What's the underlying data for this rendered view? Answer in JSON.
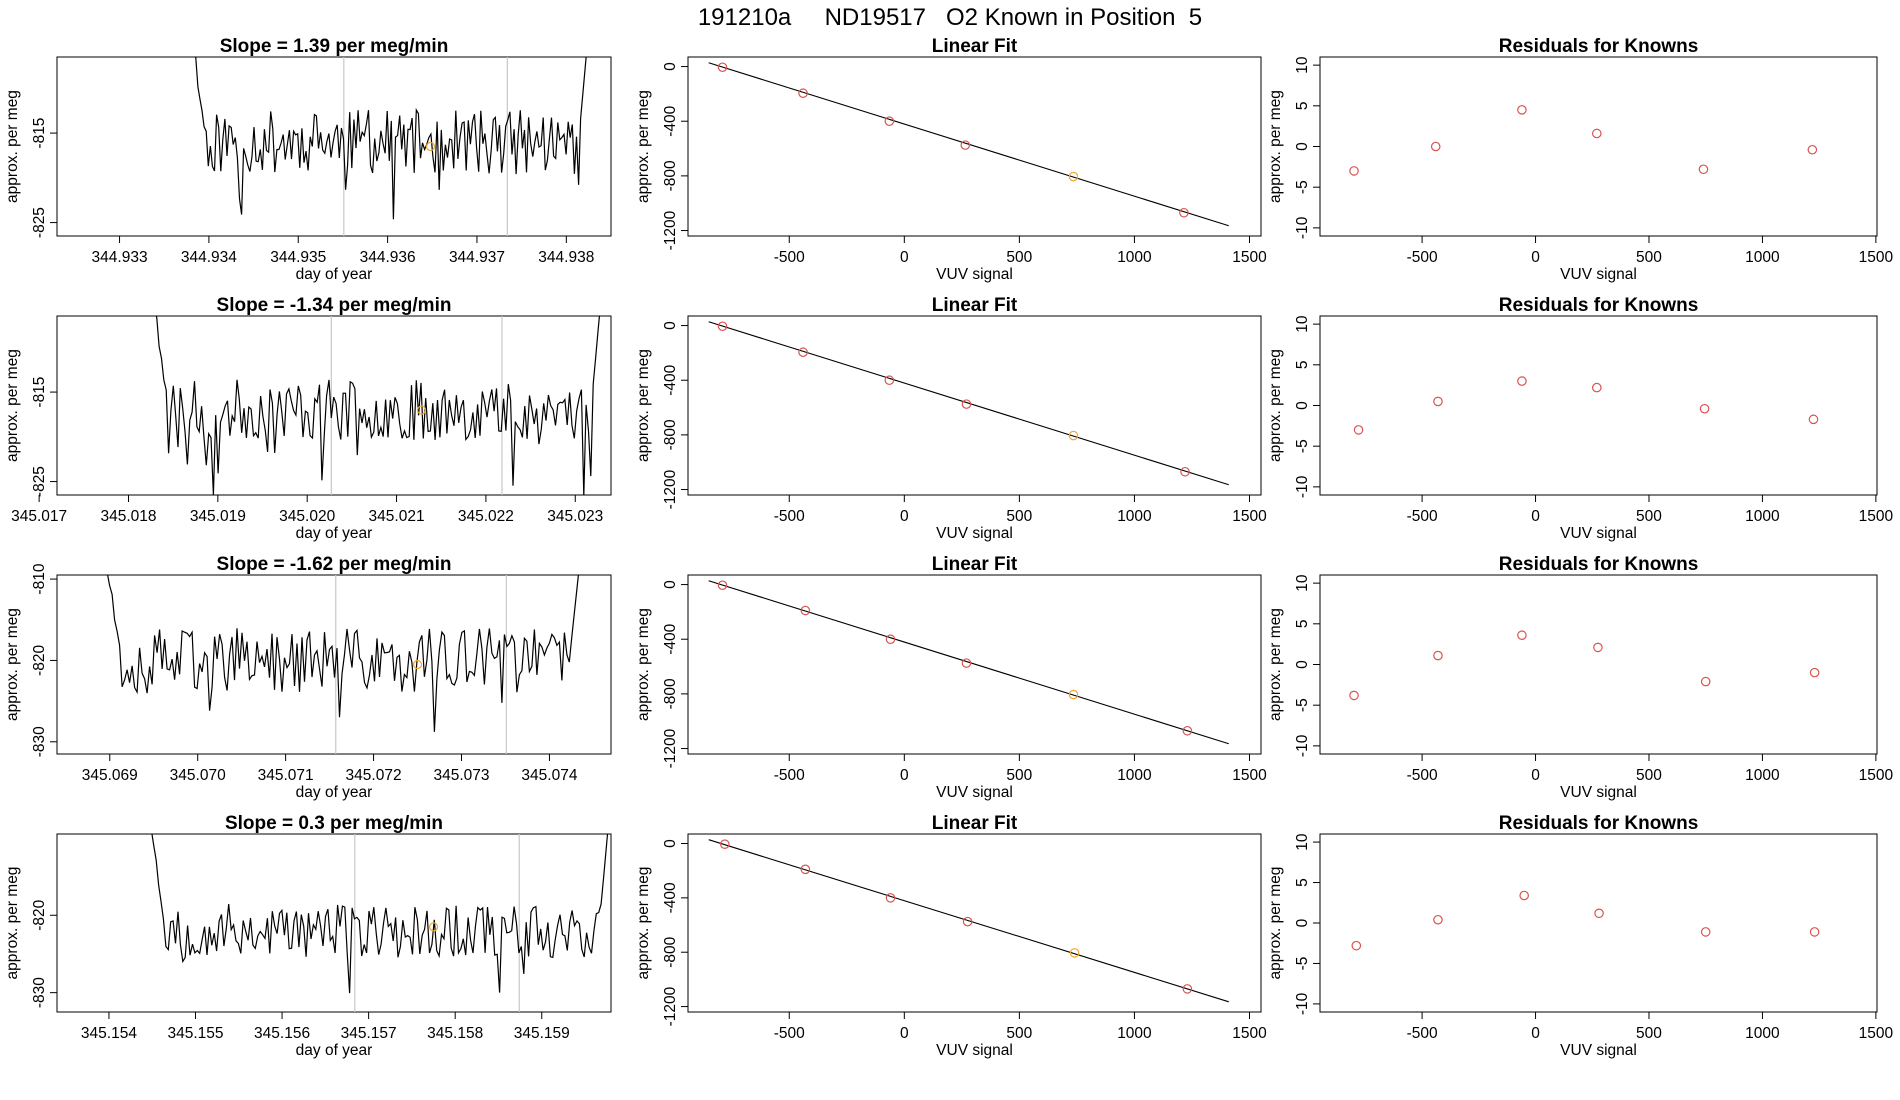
{
  "title": "191210a     ND19517   O2 Known in Position  5",
  "colors": {
    "line": "#000000",
    "point_red": "#d9534f",
    "point_orange": "#f0a830",
    "vline": "#c8c8c8"
  },
  "chart_data": [
    {
      "id": "ts1",
      "type": "line",
      "title": "Slope =  1.39  per meg/min",
      "xlabel": "day of year",
      "ylabel": "approx. per meg",
      "xlim": [
        344.9323,
        344.9385
      ],
      "ylim": [
        -826.5,
        -806.5
      ],
      "xticks": [
        "344.933",
        "344.934",
        "344.935",
        "344.936",
        "344.937",
        "344.938"
      ],
      "yticks": [
        "-825",
        "-815"
      ],
      "vlines": [
        344.93551,
        344.93734
      ],
      "highlight": {
        "x": 344.93648,
        "y": -816.5
      },
      "x_start": 344.93383,
      "x_end": 344.93823,
      "series_seed": 11,
      "series_mean": -816,
      "series_amp": 3.6
    },
    {
      "id": "lf1",
      "type": "scatter",
      "title": "Linear Fit",
      "xlabel": "VUV signal",
      "ylabel": "approx. per meg",
      "xlim": [
        -940,
        1550
      ],
      "ylim": [
        -1240,
        70
      ],
      "xticks": [
        "-500",
        "0",
        "500",
        "1000",
        "1500"
      ],
      "yticks": [
        "0",
        "-400",
        "-800",
        "-1200"
      ],
      "fit_line": {
        "x": [
          -850,
          1410
        ],
        "y": [
          28,
          -1165
        ]
      },
      "points": [
        {
          "x": -790,
          "y": -5
        },
        {
          "x": -440,
          "y": -195
        },
        {
          "x": -65,
          "y": -400
        },
        {
          "x": 265,
          "y": -575
        },
        {
          "x": 735,
          "y": -805
        },
        {
          "x": 1215,
          "y": -1070
        }
      ],
      "highlight_index": 4
    },
    {
      "id": "rs1",
      "type": "scatter",
      "title": "Residuals for Knowns",
      "xlabel": "VUV signal",
      "ylabel": "approx. per meg",
      "xlim": [
        -950,
        1505
      ],
      "ylim": [
        -11,
        11
      ],
      "xticks": [
        "-500",
        "0",
        "500",
        "1000",
        "1500"
      ],
      "yticks": [
        "10",
        "5",
        "0",
        "-5",
        "-10"
      ],
      "points": [
        {
          "x": -800,
          "y": -3
        },
        {
          "x": -440,
          "y": 0
        },
        {
          "x": -60,
          "y": 4.5
        },
        {
          "x": 270,
          "y": 1.6
        },
        {
          "x": 740,
          "y": -2.8
        },
        {
          "x": 1220,
          "y": -0.4
        }
      ]
    },
    {
      "id": "ts2",
      "type": "line",
      "title": "Slope =  -1.34  per meg/min",
      "xlabel": "day of year",
      "ylabel": "approx. per meg",
      "xlim": [
        345.0172,
        345.0234
      ],
      "ylim": [
        -826.5,
        -806.5
      ],
      "xticks": [
        "345.017",
        "345.018",
        "345.019",
        "345.020",
        "345.021",
        "345.022",
        "345.023"
      ],
      "yticks": [
        "-825",
        "-815"
      ],
      "vlines": [
        345.02027,
        345.02218
      ],
      "highlight": {
        "x": 345.02128,
        "y": -817
      },
      "x_start": 345.01829,
      "x_end": 345.02328,
      "series_seed": 23,
      "series_mean": -817,
      "series_amp": 3.4
    },
    {
      "id": "lf2",
      "type": "scatter",
      "title": "Linear Fit",
      "xlabel": "VUV signal",
      "ylabel": "approx. per meg",
      "xlim": [
        -940,
        1550
      ],
      "ylim": [
        -1240,
        70
      ],
      "xticks": [
        "-500",
        "0",
        "500",
        "1000",
        "1500"
      ],
      "yticks": [
        "0",
        "-400",
        "-800",
        "-1200"
      ],
      "fit_line": {
        "x": [
          -850,
          1410
        ],
        "y": [
          28,
          -1165
        ]
      },
      "points": [
        {
          "x": -790,
          "y": -5
        },
        {
          "x": -440,
          "y": -195
        },
        {
          "x": -65,
          "y": -400
        },
        {
          "x": 270,
          "y": -575
        },
        {
          "x": 735,
          "y": -805
        },
        {
          "x": 1220,
          "y": -1070
        }
      ],
      "highlight_index": 4
    },
    {
      "id": "rs2",
      "type": "scatter",
      "title": "Residuals for Knowns",
      "xlabel": "VUV signal",
      "ylabel": "approx. per meg",
      "xlim": [
        -950,
        1505
      ],
      "ylim": [
        -11,
        11
      ],
      "xticks": [
        "-500",
        "0",
        "500",
        "1000",
        "1500"
      ],
      "yticks": [
        "10",
        "5",
        "0",
        "-5",
        "-10"
      ],
      "points": [
        {
          "x": -780,
          "y": -3
        },
        {
          "x": -430,
          "y": 0.5
        },
        {
          "x": -60,
          "y": 3
        },
        {
          "x": 270,
          "y": 2.2
        },
        {
          "x": 745,
          "y": -0.4
        },
        {
          "x": 1225,
          "y": -1.7
        }
      ]
    },
    {
      "id": "ts3",
      "type": "line",
      "title": "Slope =  -1.62  per meg/min",
      "xlabel": "day of year",
      "ylabel": "approx. per meg",
      "xlim": [
        345.0684,
        345.0747
      ],
      "ylim": [
        -831.5,
        -809.5
      ],
      "xticks": [
        "345.069",
        "345.070",
        "345.071",
        "345.072",
        "345.073",
        "345.074"
      ],
      "yticks": [
        "-810",
        "-820",
        "-830"
      ],
      "vlines": [
        345.07157,
        345.07351
      ],
      "highlight": {
        "x": 345.0725,
        "y": -820.5
      },
      "x_start": 345.06897,
      "x_end": 345.07434,
      "series_seed": 37,
      "series_mean": -820,
      "series_amp": 4.0
    },
    {
      "id": "lf3",
      "type": "scatter",
      "title": "Linear Fit",
      "xlabel": "VUV signal",
      "ylabel": "approx. per meg",
      "xlim": [
        -940,
        1550
      ],
      "ylim": [
        -1240,
        70
      ],
      "xticks": [
        "-500",
        "0",
        "500",
        "1000",
        "1500"
      ],
      "yticks": [
        "0",
        "-400",
        "-800",
        "-1200"
      ],
      "fit_line": {
        "x": [
          -850,
          1410
        ],
        "y": [
          28,
          -1165
        ]
      },
      "points": [
        {
          "x": -790,
          "y": -5
        },
        {
          "x": -430,
          "y": -190
        },
        {
          "x": -60,
          "y": -400
        },
        {
          "x": 270,
          "y": -575
        },
        {
          "x": 735,
          "y": -805
        },
        {
          "x": 1230,
          "y": -1070
        }
      ],
      "highlight_index": 4
    },
    {
      "id": "rs3",
      "type": "scatter",
      "title": "Residuals for Knowns",
      "xlabel": "VUV signal",
      "ylabel": "approx. per meg",
      "xlim": [
        -950,
        1505
      ],
      "ylim": [
        -11,
        11
      ],
      "xticks": [
        "-500",
        "0",
        "500",
        "1000",
        "1500"
      ],
      "yticks": [
        "10",
        "5",
        "0",
        "-5",
        "-10"
      ],
      "points": [
        {
          "x": -800,
          "y": -3.8
        },
        {
          "x": -430,
          "y": 1.1
        },
        {
          "x": -60,
          "y": 3.6
        },
        {
          "x": 275,
          "y": 2.1
        },
        {
          "x": 750,
          "y": -2.1
        },
        {
          "x": 1230,
          "y": -1
        }
      ]
    },
    {
      "id": "ts4",
      "type": "line",
      "title": "Slope =  0.3  per meg/min",
      "xlabel": "day of year",
      "ylabel": "approx. per meg",
      "xlim": [
        345.1534,
        345.1598
      ],
      "ylim": [
        -832.5,
        -809.5
      ],
      "xticks": [
        "345.154",
        "345.155",
        "345.156",
        "345.157",
        "345.158",
        "345.159"
      ],
      "yticks": [
        "-820",
        "-830"
      ],
      "vlines": [
        345.15684,
        345.15874
      ],
      "highlight": {
        "x": 345.15775,
        "y": -821.5
      },
      "x_start": 345.15449,
      "x_end": 345.15977,
      "series_seed": 53,
      "series_mean": -822,
      "series_amp": 3.5
    },
    {
      "id": "lf4",
      "type": "scatter",
      "title": "Linear Fit",
      "xlabel": "VUV signal",
      "ylabel": "approx. per meg",
      "xlim": [
        -940,
        1550
      ],
      "ylim": [
        -1240,
        70
      ],
      "xticks": [
        "-500",
        "0",
        "500",
        "1000",
        "1500"
      ],
      "yticks": [
        "0",
        "-400",
        "-800",
        "-1200"
      ],
      "fit_line": {
        "x": [
          -850,
          1410
        ],
        "y": [
          28,
          -1165
        ]
      },
      "points": [
        {
          "x": -780,
          "y": -5
        },
        {
          "x": -430,
          "y": -190
        },
        {
          "x": -60,
          "y": -400
        },
        {
          "x": 275,
          "y": -575
        },
        {
          "x": 740,
          "y": -805
        },
        {
          "x": 1230,
          "y": -1070
        }
      ],
      "highlight_index": 4
    },
    {
      "id": "rs4",
      "type": "scatter",
      "title": "Residuals for Knowns",
      "xlabel": "VUV signal",
      "ylabel": "approx. per meg",
      "xlim": [
        -950,
        1505
      ],
      "ylim": [
        -11,
        11
      ],
      "xticks": [
        "-500",
        "0",
        "500",
        "1000",
        "1500"
      ],
      "yticks": [
        "10",
        "5",
        "0",
        "-5",
        "-10"
      ],
      "points": [
        {
          "x": -790,
          "y": -2.8
        },
        {
          "x": -430,
          "y": 0.4
        },
        {
          "x": -50,
          "y": 3.4
        },
        {
          "x": 280,
          "y": 1.2
        },
        {
          "x": 750,
          "y": -1.1
        },
        {
          "x": 1230,
          "y": -1.1
        }
      ]
    }
  ]
}
